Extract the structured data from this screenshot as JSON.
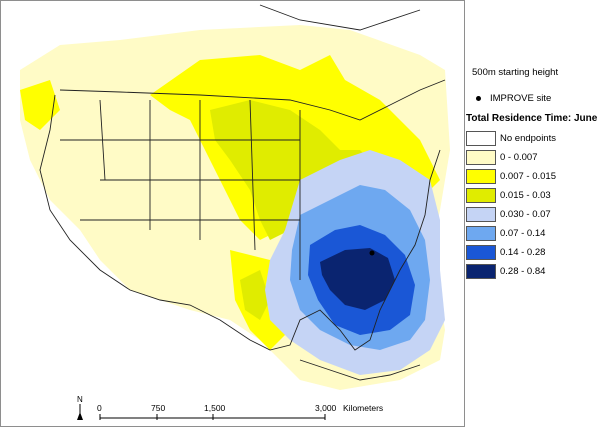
{
  "map": {
    "subtitle": "500m starting height",
    "site_marker_label": "IMPROVE site",
    "legend_title": "Total Residence Time: June",
    "legend": [
      {
        "label": "No endpoints",
        "color": "#ffffff"
      },
      {
        "label": "0 - 0.007",
        "color": "#fffbc6"
      },
      {
        "label": "0.007 - 0.015",
        "color": "#ffff00"
      },
      {
        "label": "0.015 - 0.03",
        "color": "#e0ec00"
      },
      {
        "label": "0.030 - 0.07",
        "color": "#c5d4f5"
      },
      {
        "label": "0.07 - 0.14",
        "color": "#6ea8f0"
      },
      {
        "label": "0.14 - 0.28",
        "color": "#1a57d6"
      },
      {
        "label": "0.28 - 0.84",
        "color": "#0a2470"
      }
    ],
    "scale_bar": {
      "ticks": [
        "0",
        "750",
        "1,500",
        "3,000"
      ],
      "unit": "Kilometers"
    },
    "north_label": "N"
  }
}
